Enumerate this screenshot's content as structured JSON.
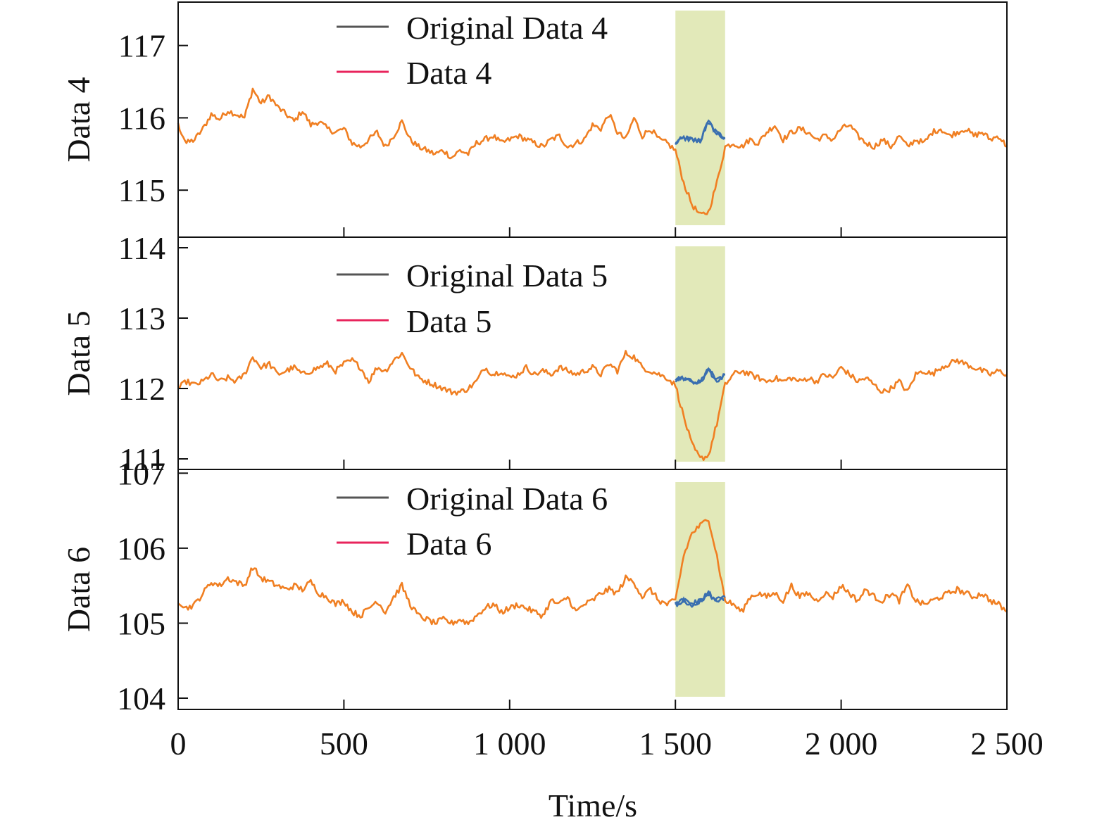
{
  "chart_data": {
    "type": "line",
    "xlabel": "Time/s",
    "xlim": [
      0,
      2500
    ],
    "x_ticks": [
      0,
      500,
      1000,
      1500,
      2000,
      2500
    ],
    "x_tick_labels": [
      "0",
      "500",
      "1 000",
      "1 500",
      "2 000",
      "2 500"
    ],
    "highlight_region": {
      "x_start": 1500,
      "x_end": 1650,
      "color": "#e2e9b9"
    },
    "sample_step": 25,
    "colors": {
      "original": "#3a6fb0",
      "processed": "#f07f22",
      "legend_original": "#555555",
      "legend_processed": "#e8245c"
    },
    "grid": false,
    "legend_placement": "upper-center",
    "panels": [
      {
        "ylabel": "Data 4",
        "ylim": [
          114.35,
          117.6
        ],
        "yticks": [
          115,
          116,
          117
        ],
        "ytick_labels": [
          "115",
          "116",
          "117"
        ],
        "series": [
          {
            "name": "Original Data 4",
            "role": "original",
            "x": [
              1500,
              1525,
              1550,
              1575,
              1600,
              1625,
              1650
            ],
            "values": [
              115.65,
              115.72,
              115.7,
              115.68,
              115.95,
              115.78,
              115.72
            ]
          },
          {
            "name": "Data 4",
            "role": "processed",
            "x": [
              0,
              25,
              50,
              75,
              100,
              125,
              150,
              175,
              200,
              225,
              250,
              275,
              300,
              325,
              350,
              375,
              400,
              425,
              450,
              475,
              500,
              525,
              550,
              575,
              600,
              625,
              650,
              675,
              700,
              725,
              750,
              775,
              800,
              825,
              850,
              875,
              900,
              925,
              950,
              975,
              1000,
              1025,
              1050,
              1075,
              1100,
              1125,
              1150,
              1175,
              1200,
              1225,
              1250,
              1275,
              1300,
              1325,
              1350,
              1375,
              1400,
              1425,
              1450,
              1475,
              1500,
              1525,
              1550,
              1575,
              1600,
              1625,
              1650,
              1675,
              1700,
              1725,
              1750,
              1775,
              1800,
              1825,
              1850,
              1875,
              1900,
              1925,
              1950,
              1975,
              2000,
              2025,
              2050,
              2075,
              2100,
              2125,
              2150,
              2175,
              2200,
              2225,
              2250,
              2275,
              2300,
              2325,
              2350,
              2375,
              2400,
              2425,
              2450,
              2475,
              2500
            ],
            "values": [
              115.9,
              115.65,
              115.7,
              115.85,
              116.05,
              115.98,
              116.1,
              116.05,
              116.0,
              116.4,
              116.2,
              116.3,
              116.15,
              116.05,
              115.95,
              116.1,
              115.9,
              115.95,
              115.85,
              115.8,
              115.85,
              115.65,
              115.6,
              115.7,
              115.8,
              115.6,
              115.75,
              115.95,
              115.7,
              115.6,
              115.55,
              115.5,
              115.55,
              115.45,
              115.55,
              115.5,
              115.65,
              115.7,
              115.75,
              115.65,
              115.7,
              115.75,
              115.7,
              115.65,
              115.6,
              115.7,
              115.75,
              115.6,
              115.65,
              115.7,
              115.9,
              115.85,
              116.05,
              115.8,
              115.7,
              116.0,
              115.75,
              115.85,
              115.7,
              115.65,
              115.55,
              115.1,
              114.8,
              114.65,
              114.7,
              115.1,
              115.6,
              115.65,
              115.6,
              115.7,
              115.65,
              115.8,
              115.9,
              115.7,
              115.8,
              115.85,
              115.8,
              115.7,
              115.75,
              115.7,
              115.85,
              115.9,
              115.75,
              115.65,
              115.6,
              115.7,
              115.6,
              115.75,
              115.6,
              115.7,
              115.65,
              115.8,
              115.85,
              115.75,
              115.8,
              115.85,
              115.75,
              115.8,
              115.7,
              115.75,
              115.6
            ]
          }
        ]
      },
      {
        "ylabel": "Data 5",
        "ylim": [
          110.85,
          114.15
        ],
        "yticks": [
          111,
          112,
          113,
          114
        ],
        "ytick_labels": [
          "111",
          "112",
          "113",
          "114"
        ],
        "series": [
          {
            "name": "Original Data 5",
            "role": "original",
            "x": [
              1500,
              1525,
              1550,
              1575,
              1600,
              1625,
              1650
            ],
            "values": [
              112.12,
              112.15,
              112.1,
              112.08,
              112.28,
              112.1,
              112.2
            ]
          },
          {
            "name": "Data 5",
            "role": "processed",
            "x": [
              0,
              25,
              50,
              75,
              100,
              125,
              150,
              175,
              200,
              225,
              250,
              275,
              300,
              325,
              350,
              375,
              400,
              425,
              450,
              475,
              500,
              525,
              550,
              575,
              600,
              625,
              650,
              675,
              700,
              725,
              750,
              775,
              800,
              825,
              850,
              875,
              900,
              925,
              950,
              975,
              1000,
              1025,
              1050,
              1075,
              1100,
              1125,
              1150,
              1175,
              1200,
              1225,
              1250,
              1275,
              1300,
              1325,
              1350,
              1375,
              1400,
              1425,
              1450,
              1475,
              1500,
              1525,
              1550,
              1575,
              1600,
              1625,
              1650,
              1675,
              1700,
              1725,
              1750,
              1775,
              1800,
              1825,
              1850,
              1875,
              1900,
              1925,
              1950,
              1975,
              2000,
              2025,
              2050,
              2075,
              2100,
              2125,
              2150,
              2175,
              2200,
              2225,
              2250,
              2275,
              2300,
              2325,
              2350,
              2375,
              2400,
              2425,
              2450,
              2475,
              2500
            ],
            "values": [
              112.0,
              112.1,
              112.05,
              112.1,
              112.2,
              112.1,
              112.15,
              112.1,
              112.2,
              112.45,
              112.3,
              112.35,
              112.2,
              112.25,
              112.3,
              112.2,
              112.25,
              112.3,
              112.35,
              112.25,
              112.35,
              112.4,
              112.3,
              112.1,
              112.3,
              112.25,
              112.4,
              112.5,
              112.3,
              112.15,
              112.1,
              112.05,
              112.0,
              111.95,
              111.95,
              112.0,
              112.1,
              112.3,
              112.2,
              112.25,
              112.15,
              112.2,
              112.3,
              112.2,
              112.25,
              112.2,
              112.3,
              112.25,
              112.2,
              112.25,
              112.3,
              112.2,
              112.35,
              112.25,
              112.5,
              112.45,
              112.3,
              112.25,
              112.2,
              112.15,
              112.05,
              111.6,
              111.2,
              111.0,
              111.05,
              111.5,
              112.05,
              112.2,
              112.25,
              112.2,
              112.15,
              112.1,
              112.15,
              112.1,
              112.15,
              112.1,
              112.15,
              112.1,
              112.2,
              112.15,
              112.3,
              112.2,
              112.1,
              112.15,
              112.05,
              111.95,
              112.0,
              112.1,
              111.95,
              112.2,
              112.25,
              112.2,
              112.3,
              112.35,
              112.4,
              112.35,
              112.3,
              112.25,
              112.2,
              112.25,
              112.2
            ]
          }
        ]
      },
      {
        "ylabel": "Data 6",
        "ylim": [
          103.85,
          107.05
        ],
        "yticks": [
          104,
          105,
          106,
          107
        ],
        "ytick_labels": [
          "104",
          "105",
          "106",
          "107"
        ],
        "series": [
          {
            "name": "Original Data 6",
            "role": "original",
            "x": [
              1500,
              1525,
              1550,
              1575,
              1600,
              1625,
              1650
            ],
            "values": [
              105.25,
              105.3,
              105.25,
              105.3,
              105.4,
              105.3,
              105.35
            ]
          },
          {
            "name": "Data 6",
            "role": "processed",
            "x": [
              0,
              25,
              50,
              75,
              100,
              125,
              150,
              175,
              200,
              225,
              250,
              275,
              300,
              325,
              350,
              375,
              400,
              425,
              450,
              475,
              500,
              525,
              550,
              575,
              600,
              625,
              650,
              675,
              700,
              725,
              750,
              775,
              800,
              825,
              850,
              875,
              900,
              925,
              950,
              975,
              1000,
              1025,
              1050,
              1075,
              1100,
              1125,
              1150,
              1175,
              1200,
              1225,
              1250,
              1275,
              1300,
              1325,
              1350,
              1375,
              1400,
              1425,
              1450,
              1475,
              1500,
              1525,
              1550,
              1575,
              1600,
              1625,
              1650,
              1675,
              1700,
              1725,
              1750,
              1775,
              1800,
              1825,
              1850,
              1875,
              1900,
              1925,
              1950,
              1975,
              2000,
              2025,
              2050,
              2075,
              2100,
              2125,
              2150,
              2175,
              2200,
              2225,
              2250,
              2275,
              2300,
              2325,
              2350,
              2375,
              2400,
              2425,
              2450,
              2475,
              2500
            ],
            "values": [
              105.3,
              105.2,
              105.25,
              105.4,
              105.55,
              105.5,
              105.6,
              105.55,
              105.5,
              105.75,
              105.6,
              105.55,
              105.5,
              105.45,
              105.5,
              105.45,
              105.55,
              105.4,
              105.35,
              105.25,
              105.3,
              105.15,
              105.1,
              105.2,
              105.3,
              105.15,
              105.35,
              105.5,
              105.25,
              105.1,
              105.05,
              105.0,
              105.05,
              105.0,
              105.05,
              105.0,
              105.1,
              105.2,
              105.25,
              105.15,
              105.2,
              105.25,
              105.2,
              105.15,
              105.1,
              105.3,
              105.25,
              105.35,
              105.15,
              105.25,
              105.3,
              105.4,
              105.45,
              105.4,
              105.6,
              105.55,
              105.35,
              105.45,
              105.3,
              105.25,
              105.3,
              105.9,
              106.2,
              106.3,
              106.4,
              105.9,
              105.3,
              105.25,
              105.15,
              105.35,
              105.4,
              105.35,
              105.4,
              105.3,
              105.5,
              105.35,
              105.4,
              105.3,
              105.4,
              105.35,
              105.5,
              105.4,
              105.3,
              105.45,
              105.35,
              105.3,
              105.4,
              105.3,
              105.5,
              105.3,
              105.25,
              105.3,
              105.35,
              105.4,
              105.45,
              105.4,
              105.35,
              105.4,
              105.3,
              105.25,
              105.15
            ]
          }
        ]
      }
    ]
  }
}
